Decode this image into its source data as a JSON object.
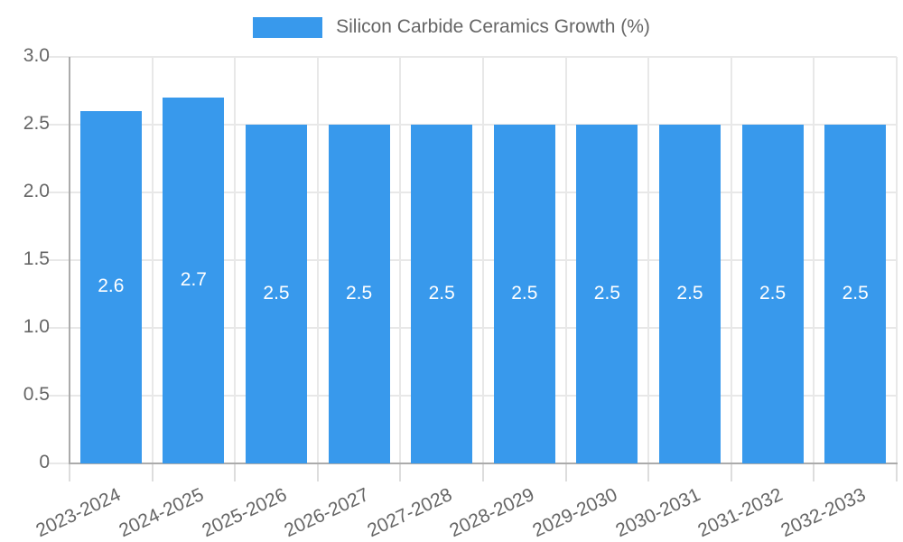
{
  "legend": {
    "label": "Silicon Carbide Ceramics Growth (%)"
  },
  "colors": {
    "bar": "#3899ec",
    "grid": "#e8e8e8",
    "tick": "#dddddd",
    "axis": "#ababab",
    "text": "#666666",
    "value_text": "#ffffff"
  },
  "chart_data": {
    "type": "bar",
    "title": "",
    "legend_entries": [
      "Silicon Carbide Ceramics Growth (%)"
    ],
    "legend_position": "top",
    "categories": [
      "2023-2024",
      "2024-2025",
      "2025-2026",
      "2026-2027",
      "2027-2028",
      "2028-2029",
      "2029-2030",
      "2030-2031",
      "2031-2032",
      "2032-2033"
    ],
    "values": [
      2.6,
      2.7,
      2.5,
      2.5,
      2.5,
      2.5,
      2.5,
      2.5,
      2.5,
      2.5
    ],
    "bar_value_labels": [
      "2.6",
      "2.7",
      "2.5",
      "2.5",
      "2.5",
      "2.5",
      "2.5",
      "2.5",
      "2.5",
      "2.5"
    ],
    "xlabel": "",
    "ylabel": "",
    "ylim": [
      0,
      3.0
    ],
    "yticks": [
      0,
      0.5,
      1.0,
      1.5,
      2.0,
      2.5,
      3.0
    ],
    "ytick_labels": [
      "0",
      "0.5",
      "1.0",
      "1.5",
      "2.0",
      "2.5",
      "3.0"
    ],
    "grid": true
  }
}
